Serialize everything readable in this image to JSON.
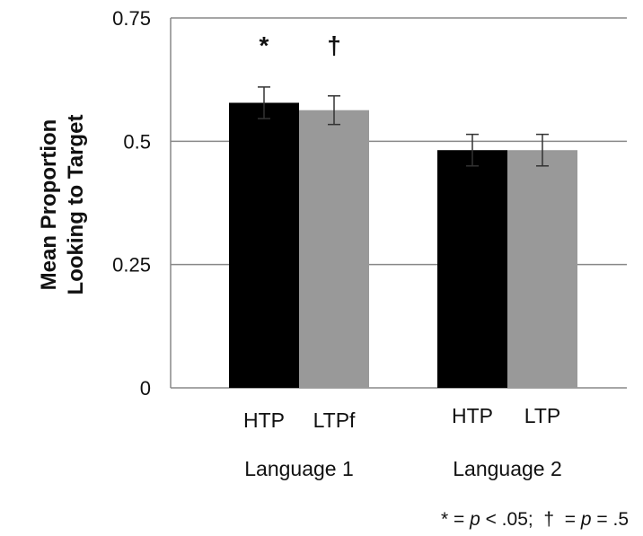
{
  "chart_data": {
    "type": "bar",
    "title": "",
    "ylabel": [
      "Mean Proportion",
      "Looking to Target"
    ],
    "ylim": [
      0,
      0.75
    ],
    "yticks": [
      {
        "value": 0,
        "label": "0"
      },
      {
        "value": 0.25,
        "label": "0.25"
      },
      {
        "value": 0.5,
        "label": "0.5"
      },
      {
        "value": 0.75,
        "label": "0.75"
      }
    ],
    "grid": true,
    "groups": [
      {
        "name": "Language 1",
        "bars": [
          {
            "label": "HTP",
            "value": 0.578,
            "error": 0.032,
            "color": "#000000",
            "significance": "*"
          },
          {
            "label": "LTPf",
            "value": 0.563,
            "error": 0.029,
            "color": "#999999",
            "significance": "†"
          }
        ]
      },
      {
        "name": "Language 2",
        "bars": [
          {
            "label": "HTP",
            "value": 0.482,
            "error": 0.032,
            "color": "#000000",
            "significance": ""
          },
          {
            "label": "LTP",
            "value": 0.482,
            "error": 0.032,
            "color": "#999999",
            "significance": ""
          }
        ]
      }
    ],
    "footnote": {
      "star": "*",
      "eq1": " = ",
      "p1": "p",
      "rest1": " < .05;  ",
      "dagger": "†",
      "eq2": "  = ",
      "p2": "p",
      "rest2": " = .5"
    }
  }
}
